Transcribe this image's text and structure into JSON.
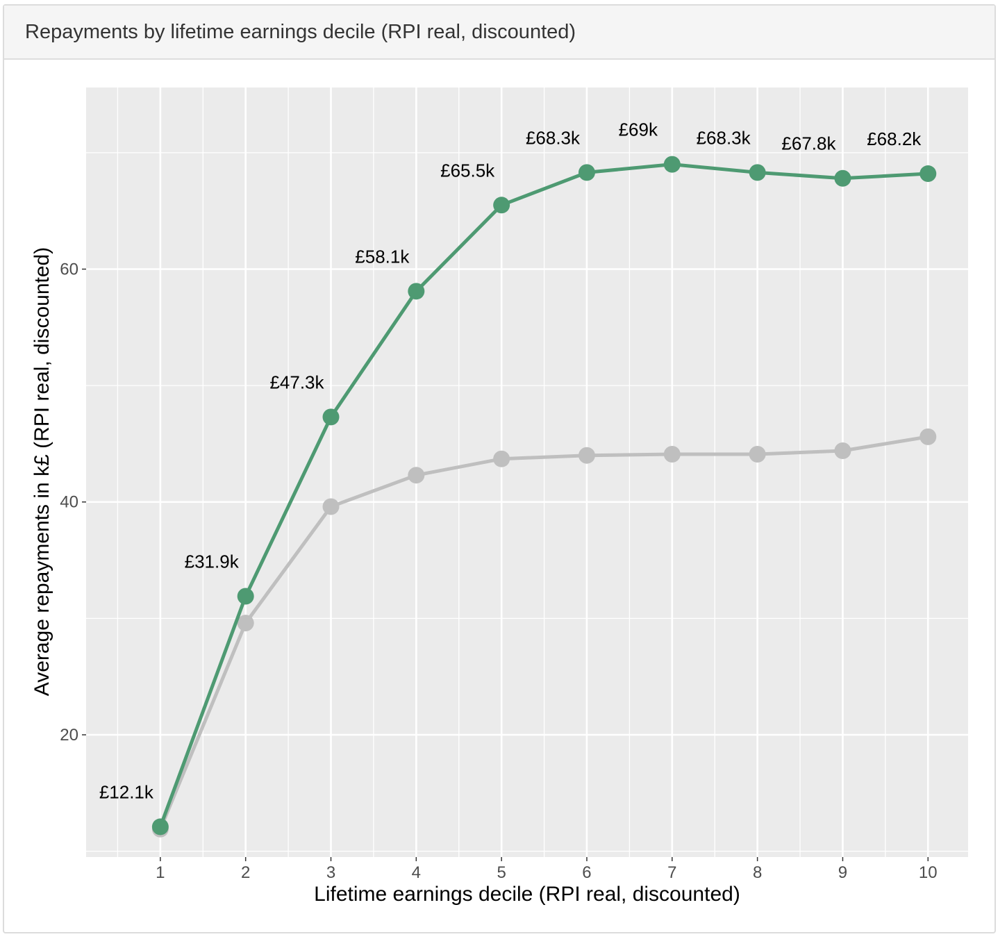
{
  "card": {
    "title": "Repayments by lifetime earnings decile (RPI real, discounted)"
  },
  "colors": {
    "panel_bg": "#ebebeb",
    "grid": "#ffffff",
    "series_main": "#4e9a72",
    "series_other": "#bfbfbf"
  },
  "chart_data": {
    "type": "line",
    "title": "Repayments by lifetime earnings decile (RPI real, discounted)",
    "xlabel": "Lifetime earnings decile (RPI real, discounted)",
    "ylabel": "Average repayments in k£ (RPI real, discounted)",
    "x": [
      1,
      2,
      3,
      4,
      5,
      6,
      7,
      8,
      9,
      10
    ],
    "xlim": [
      0.13,
      10.47
    ],
    "ylim": [
      9.5,
      75.6
    ],
    "y_ticks": [
      20,
      40,
      60
    ],
    "grid": true,
    "legend": "none",
    "series": [
      {
        "color": "#4e9a72",
        "values": [
          12.1,
          31.9,
          47.3,
          58.1,
          65.5,
          68.3,
          69.0,
          68.3,
          67.8,
          68.2
        ],
        "data_labels": [
          "£12.1k",
          "£31.9k",
          "£47.3k",
          "£58.1k",
          "£65.5k",
          "£68.3k",
          "£69k",
          "£68.3k",
          "£67.8k",
          "£68.2k"
        ]
      },
      {
        "color": "#bfbfbf",
        "values": [
          11.9,
          29.6,
          39.6,
          42.3,
          43.7,
          44.0,
          44.1,
          44.1,
          44.4,
          45.6
        ]
      }
    ]
  }
}
